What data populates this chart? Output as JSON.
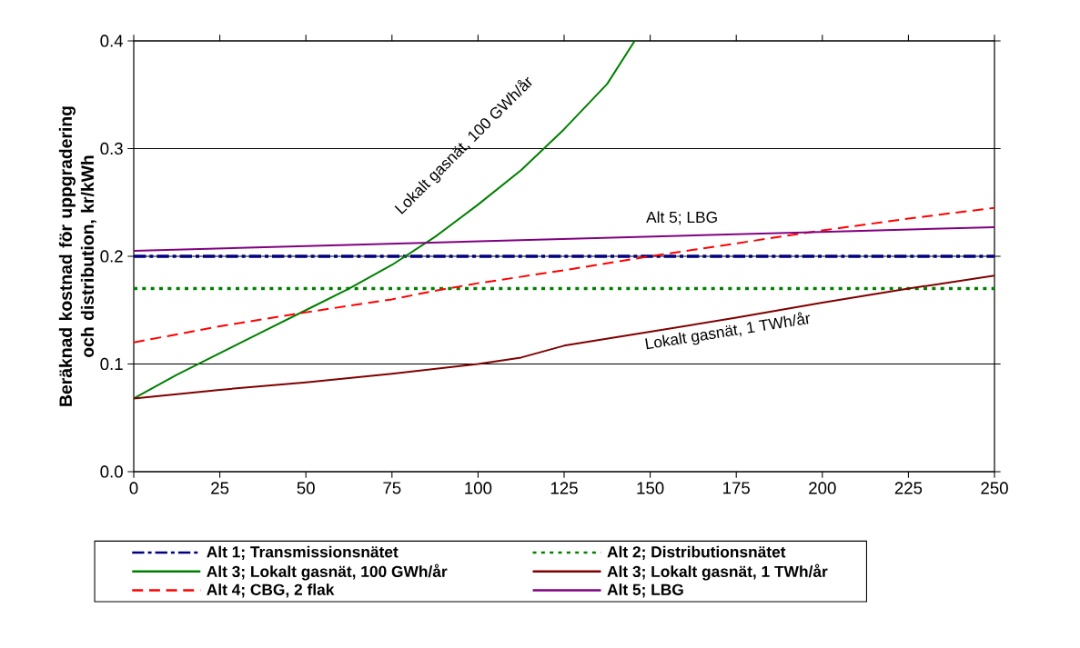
{
  "chart_data": {
    "type": "line",
    "ylabel": "Beräknad kostnad för uppgradering och distribution, kr/kWh",
    "xlim": [
      0,
      250
    ],
    "xticks": [
      0,
      25,
      50,
      75,
      100,
      125,
      150,
      175,
      200,
      225,
      250
    ],
    "ylim": [
      0,
      0.4
    ],
    "yticks": [
      {
        "value": 0,
        "label": "0.0"
      },
      0.1,
      0.2,
      0.3,
      0.4
    ],
    "grid": "y",
    "legend": "bottom",
    "marker": "none",
    "series": [
      {
        "name": "Alt 1; Transmissionsnätet",
        "color": "#000080",
        "line_style": "dashdot",
        "x": [
          0,
          250
        ],
        "values": [
          0.2,
          0.2
        ]
      },
      {
        "name": "Alt 2; Distributionsnätet",
        "color": "#008000",
        "line_style": "dotted",
        "x": [
          0,
          250
        ],
        "values": [
          0.17,
          0.17
        ]
      },
      {
        "name": "Alt 3; Lokalt gasnät, 100 GWh/år",
        "color": "#008000",
        "line_style": "solid",
        "x": [
          0,
          12.5,
          25,
          37.5,
          50,
          62.5,
          75,
          87.5,
          100,
          112.5,
          125,
          137.5,
          145.5
        ],
        "values": [
          0.068,
          0.09,
          0.11,
          0.13,
          0.15,
          0.17,
          0.192,
          0.218,
          0.248,
          0.28,
          0.318,
          0.36,
          0.4
        ]
      },
      {
        "name": "Alt 3; Lokalt gasnät, 1 TWh/år",
        "color": "#800000",
        "line_style": "solid",
        "x": [
          0,
          25,
          50,
          75,
          100,
          112.5,
          125,
          150,
          175,
          200,
          225,
          250
        ],
        "values": [
          0.068,
          0.076,
          0.083,
          0.091,
          0.1,
          0.106,
          0.117,
          0.13,
          0.143,
          0.157,
          0.17,
          0.182
        ]
      },
      {
        "name": "Alt 4; CBG, 2 flak",
        "color": "#ff0000",
        "line_style": "dashed",
        "x": [
          0,
          25,
          50,
          75,
          87.5,
          100,
          125,
          150,
          175,
          200,
          225,
          250
        ],
        "values": [
          0.12,
          0.135,
          0.148,
          0.16,
          0.168,
          0.175,
          0.187,
          0.2,
          0.212,
          0.224,
          0.235,
          0.245
        ]
      },
      {
        "name": "Alt 5; LBG",
        "color": "#800080",
        "line_style": "solid",
        "x": [
          0,
          250
        ],
        "values": [
          0.205,
          0.227
        ]
      }
    ],
    "annotations": [
      "Lokalt gasnät, 100 GWh/år",
      "Alt 5; LBG",
      "Lokalt gasnät, 1 TWh/år"
    ]
  }
}
